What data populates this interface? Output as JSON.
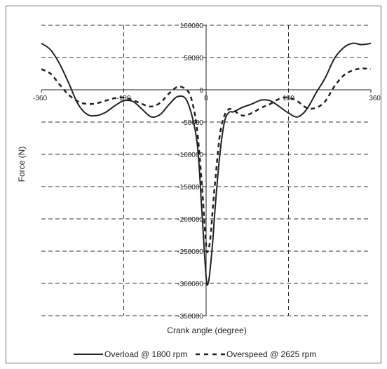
{
  "chart_data": {
    "type": "line",
    "xlabel": "Crank angle (degree)",
    "ylabel": "Force (N)",
    "xlim": [
      -360,
      360
    ],
    "ylim": [
      -350000,
      100000
    ],
    "x_ticks": [
      "-360",
      "-180",
      "0",
      "180",
      "360"
    ],
    "y_ticks": [
      "100000",
      "50000",
      "0",
      "-50000",
      "-100000",
      "-150000",
      "-200000",
      "-250000",
      "-300000",
      "-350000"
    ],
    "grid": "dashed gridlines at y ticks and x = -180, 180",
    "legend_position": "bottom",
    "series": [
      {
        "name": "Overload @ 1800 rpm",
        "style": "solid",
        "color": "#222222",
        "x": [
          -360,
          -340,
          -320,
          -300,
          -280,
          -260,
          -240,
          -220,
          -200,
          -180,
          -160,
          -140,
          -120,
          -100,
          -80,
          -60,
          -40,
          -20,
          -10,
          0,
          5,
          10,
          15,
          20,
          30,
          40,
          50,
          60,
          80,
          100,
          120,
          140,
          160,
          180,
          200,
          220,
          240,
          260,
          280,
          300,
          320,
          340,
          360
        ],
        "y": [
          72000,
          62000,
          40000,
          10000,
          -22000,
          -38000,
          -40000,
          -35000,
          -25000,
          -17000,
          -18000,
          -30000,
          -42000,
          -38000,
          -22000,
          -10000,
          -20000,
          -80000,
          -180000,
          -290000,
          -298000,
          -270000,
          -230000,
          -180000,
          -100000,
          -50000,
          -35000,
          -34000,
          -27000,
          -22000,
          -16000,
          -17000,
          -26000,
          -36000,
          -42000,
          -30000,
          -5000,
          18000,
          48000,
          65000,
          72000,
          70000,
          72000
        ]
      },
      {
        "name": "Overspeed @ 2625 rpm",
        "style": "dashed",
        "color": "#222222",
        "x": [
          -360,
          -340,
          -320,
          -300,
          -280,
          -260,
          -240,
          -220,
          -200,
          -180,
          -160,
          -140,
          -120,
          -100,
          -80,
          -60,
          -40,
          -30,
          -20,
          -10,
          0,
          5,
          10,
          15,
          20,
          30,
          40,
          50,
          60,
          80,
          100,
          120,
          140,
          160,
          180,
          200,
          220,
          240,
          260,
          280,
          300,
          320,
          340,
          360
        ],
        "y": [
          32000,
          25000,
          8000,
          -8000,
          -18000,
          -22000,
          -21000,
          -17000,
          -13000,
          -12000,
          -16000,
          -22000,
          -26000,
          -20000,
          -5000,
          5000,
          -2000,
          -20000,
          -60000,
          -140000,
          -240000,
          -248000,
          -225000,
          -180000,
          -140000,
          -70000,
          -40000,
          -30000,
          -32000,
          -40000,
          -36000,
          -28000,
          -22000,
          -14000,
          -12000,
          -18000,
          -28000,
          -28000,
          -18000,
          5000,
          22000,
          30000,
          33000,
          32000
        ]
      }
    ]
  }
}
